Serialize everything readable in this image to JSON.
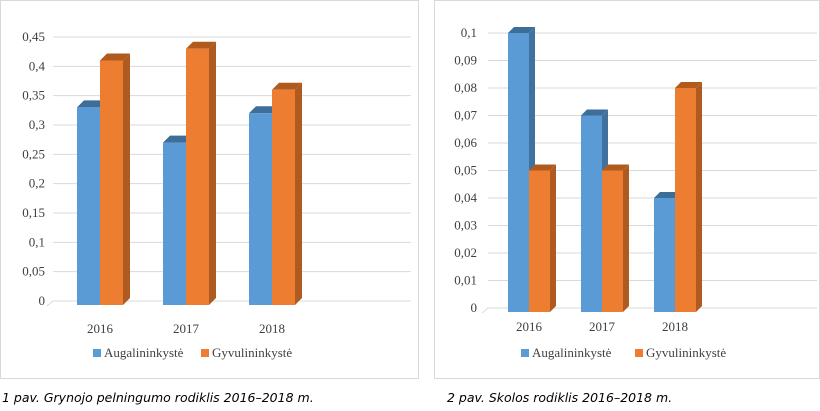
{
  "colors": {
    "series_1": "#5b9bd5",
    "series_1_side": "#41729f",
    "series_1_top": "#3d6d99",
    "series_2": "#ed7d31",
    "series_2_side": "#ae5a21",
    "series_2_top": "#b15a1e",
    "grid": "#d9d9d9",
    "axis_text": "#404040"
  },
  "chart_data": [
    {
      "type": "bar",
      "title": "",
      "xlabel": "",
      "ylabel": "",
      "categories": [
        "2016",
        "2017",
        "2018"
      ],
      "series": [
        {
          "name": "Augalininkystė",
          "values": [
            0.33,
            0.27,
            0.32
          ]
        },
        {
          "name": "Gyvulininkystė",
          "values": [
            0.41,
            0.43,
            0.36
          ]
        }
      ],
      "ylim": [
        0,
        0.45
      ],
      "ytick_labels": [
        "0",
        "0,05",
        "0,1",
        "0,15",
        "0,2",
        "0,25",
        "0,3",
        "0,35",
        "0,4",
        "0,45"
      ],
      "grid": true,
      "legend": "bottom"
    },
    {
      "type": "bar",
      "title": "",
      "xlabel": "",
      "ylabel": "",
      "categories": [
        "2016",
        "2017",
        "2018"
      ],
      "series": [
        {
          "name": "Augalininkystė",
          "values": [
            0.1,
            0.07,
            0.04
          ]
        },
        {
          "name": "Gyvulininkystė",
          "values": [
            0.05,
            0.05,
            0.08
          ]
        }
      ],
      "ylim": [
        0,
        0.1
      ],
      "ytick_labels": [
        "0",
        "0,01",
        "0,02",
        "0,03",
        "0,04",
        "0,05",
        "0,06",
        "0,07",
        "0,08",
        "0,09",
        "0,1"
      ],
      "grid": true,
      "legend": "bottom"
    }
  ],
  "captions": [
    "1 pav. Grynojo pelningumo rodiklis 2016–2018 m.",
    "2 pav. Skolos rodiklis 2016–2018 m."
  ]
}
